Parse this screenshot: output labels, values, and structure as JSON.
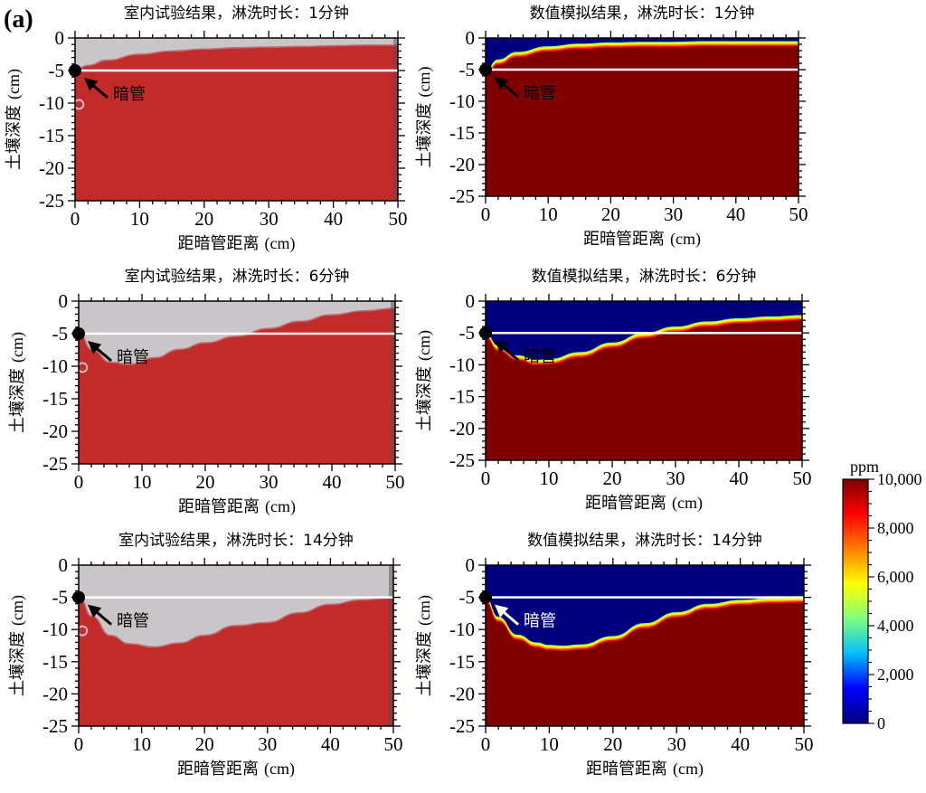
{
  "panel_label": "(a)",
  "colorbar": {
    "unit": "ppm",
    "min": 0,
    "max": 10000,
    "tick_labels": [
      "0",
      "2,000",
      "4,000",
      "6,000",
      "8,000",
      "10,000"
    ],
    "colors": [
      "#00007f",
      "#0000ff",
      "#00bfff",
      "#7fff7f",
      "#ffff00",
      "#ff7f00",
      "#ff0000",
      "#7f0000"
    ]
  },
  "drain_label": "暗管",
  "chart_data": [
    {
      "type": "heatmap",
      "kind": "experiment",
      "title": "室内试验结果，淋洗时长：1分钟",
      "xlabel": "距暗管距离",
      "xunit": "(cm)",
      "ylabel": "土壤深度",
      "yunit": "(cm)",
      "xlim": [
        0,
        50
      ],
      "ylim": [
        -25,
        0
      ],
      "x_ticks": [
        "0",
        "10",
        "20",
        "30",
        "40",
        "50"
      ],
      "y_ticks": [
        "0",
        "-5",
        "-10",
        "-15",
        "-20",
        "-25"
      ],
      "drain": {
        "x": 0,
        "y": -5
      },
      "white_line_depth": -5,
      "front": {
        "x": [
          0,
          2,
          5,
          10,
          15,
          20,
          25,
          30,
          35,
          40,
          45,
          50
        ],
        "y": [
          -5,
          -4.3,
          -3.5,
          -2.6,
          -2.1,
          -1.8,
          -1.6,
          -1.5,
          -1.4,
          -1.3,
          -1.2,
          -1.2
        ]
      }
    },
    {
      "type": "heatmap",
      "kind": "simulation",
      "title": "数值模拟结果，淋洗时长：1分钟",
      "xlabel": "距暗管距离",
      "xunit": "(cm)",
      "ylabel": "土壤深度",
      "yunit": "(cm)",
      "xlim": [
        0,
        50
      ],
      "ylim": [
        -25,
        0
      ],
      "x_ticks": [
        "0",
        "10",
        "20",
        "30",
        "40",
        "50"
      ],
      "y_ticks": [
        "0",
        "-5",
        "-10",
        "-15",
        "-20",
        "-25"
      ],
      "drain": {
        "x": 0,
        "y": -5
      },
      "white_line_depth": -5,
      "front": {
        "x": [
          0,
          2,
          5,
          10,
          15,
          20,
          25,
          30,
          35,
          40,
          45,
          50
        ],
        "y": [
          -5,
          -3.4,
          -2.2,
          -1.3,
          -0.9,
          -0.7,
          -0.6,
          -0.6,
          -0.5,
          -0.5,
          -0.5,
          -0.5
        ]
      }
    },
    {
      "type": "heatmap",
      "kind": "experiment",
      "title": "室内试验结果，淋洗时长：6分钟",
      "xlabel": "距暗管距离",
      "xunit": "(cm)",
      "ylabel": "土壤深度",
      "yunit": "(cm)",
      "xlim": [
        0,
        50
      ],
      "ylim": [
        -25,
        0
      ],
      "x_ticks": [
        "0",
        "10",
        "20",
        "30",
        "40",
        "50"
      ],
      "y_ticks": [
        "0",
        "-5",
        "-10",
        "-15",
        "-20",
        "-25"
      ],
      "drain": {
        "x": 0,
        "y": -5
      },
      "white_line_depth": -5,
      "front": {
        "x": [
          0,
          2,
          5,
          8,
          12,
          16,
          20,
          25,
          30,
          35,
          40,
          45,
          50
        ],
        "y": [
          -5,
          -7.5,
          -9.5,
          -9.8,
          -8.8,
          -7.5,
          -6.5,
          -5.5,
          -4.3,
          -3.2,
          -2.2,
          -1.6,
          -1.2
        ]
      }
    },
    {
      "type": "heatmap",
      "kind": "simulation",
      "title": "数值模拟结果，淋洗时长：6分钟",
      "xlabel": "距暗管距离",
      "xunit": "(cm)",
      "ylabel": "土壤深度",
      "yunit": "(cm)",
      "xlim": [
        0,
        50
      ],
      "ylim": [
        -25,
        0
      ],
      "x_ticks": [
        "0",
        "10",
        "20",
        "30",
        "40",
        "50"
      ],
      "y_ticks": [
        "0",
        "-5",
        "-10",
        "-15",
        "-20",
        "-25"
      ],
      "drain": {
        "x": 0,
        "y": -5
      },
      "white_line_depth": -5,
      "front": {
        "x": [
          0,
          2,
          5,
          8,
          10,
          15,
          20,
          25,
          30,
          35,
          40,
          45,
          50
        ],
        "y": [
          -5,
          -7,
          -8.5,
          -9.2,
          -9.1,
          -8,
          -6.5,
          -5,
          -4,
          -3.2,
          -2.7,
          -2.4,
          -2.2
        ]
      }
    },
    {
      "type": "heatmap",
      "kind": "experiment",
      "title": "室内试验结果，淋洗时长：14分钟",
      "xlabel": "距暗管距离",
      "xunit": "(cm)",
      "ylabel": "土壤深度",
      "yunit": "(cm)",
      "xlim": [
        0,
        50
      ],
      "ylim": [
        -25,
        0
      ],
      "x_ticks": [
        "0",
        "10",
        "20",
        "30",
        "40",
        "50"
      ],
      "y_ticks": [
        "0",
        "-5",
        "-10",
        "-15",
        "-20",
        "-25"
      ],
      "drain": {
        "x": 0,
        "y": -5
      },
      "white_line_depth": -5,
      "front": {
        "x": [
          0,
          2,
          5,
          8,
          12,
          16,
          20,
          25,
          30,
          35,
          40,
          45,
          50
        ],
        "y": [
          -5,
          -8,
          -11,
          -12.3,
          -12.8,
          -12.2,
          -11,
          -9.5,
          -9,
          -7.5,
          -6.2,
          -5.5,
          -5.2
        ]
      }
    },
    {
      "type": "heatmap",
      "kind": "simulation",
      "title": "数值模拟结果，淋洗时长：14分钟",
      "xlabel": "距暗管距离",
      "xunit": "(cm)",
      "ylabel": "土壤深度",
      "yunit": "(cm)",
      "xlim": [
        0,
        50
      ],
      "ylim": [
        -25,
        0
      ],
      "x_ticks": [
        "0",
        "10",
        "20",
        "30",
        "40",
        "50"
      ],
      "y_ticks": [
        "0",
        "-5",
        "-10",
        "-15",
        "-20",
        "-25"
      ],
      "drain": {
        "x": 0,
        "y": -5
      },
      "white_line_depth": -5,
      "front": {
        "x": [
          0,
          2,
          5,
          8,
          10,
          12,
          15,
          20,
          25,
          30,
          35,
          40,
          45,
          50
        ],
        "y": [
          -5,
          -8,
          -10.8,
          -12,
          -12.4,
          -12.5,
          -12.3,
          -11,
          -9,
          -7.3,
          -6,
          -5.4,
          -5.1,
          -5
        ]
      }
    }
  ]
}
